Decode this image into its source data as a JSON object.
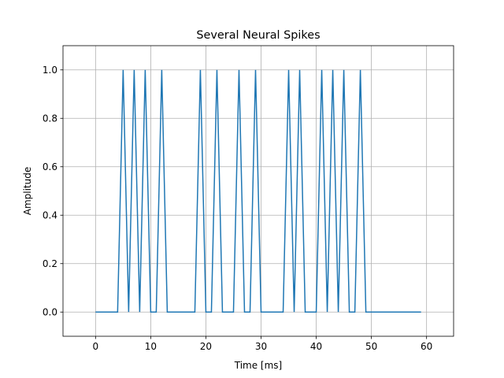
{
  "chart_data": {
    "type": "line",
    "title": "Several Neural Spikes",
    "xlabel": "Time [ms]",
    "ylabel": "Amplitude",
    "xlim": [
      -5.9,
      64.9
    ],
    "ylim": [
      -0.1,
      1.1
    ],
    "xticks": [
      0,
      10,
      20,
      30,
      40,
      50,
      60
    ],
    "yticks": [
      0.0,
      0.2,
      0.4,
      0.6,
      0.8,
      1.0
    ],
    "xtick_labels": [
      "0",
      "10",
      "20",
      "30",
      "40",
      "50",
      "60"
    ],
    "ytick_labels": [
      "0.0",
      "0.2",
      "0.4",
      "0.6",
      "0.8",
      "1.0"
    ],
    "grid": true,
    "line_color": "#1f77b4",
    "series": [
      {
        "x": [
          0,
          1,
          2,
          3,
          4,
          5,
          6,
          7,
          8,
          9,
          10,
          11,
          12,
          13,
          14,
          15,
          16,
          17,
          18,
          19,
          20,
          21,
          22,
          23,
          24,
          25,
          26,
          27,
          28,
          29,
          30,
          31,
          32,
          33,
          34,
          35,
          36,
          37,
          38,
          39,
          40,
          41,
          42,
          43,
          44,
          45,
          46,
          47,
          48,
          49,
          50,
          51,
          52,
          53,
          54,
          55,
          56,
          57,
          58,
          59
        ],
        "y": [
          0,
          0,
          0,
          0,
          0,
          1,
          0,
          1,
          0,
          1,
          0,
          0,
          1,
          0,
          0,
          0,
          0,
          0,
          0,
          1,
          0,
          0,
          1,
          0,
          0,
          0,
          1,
          0,
          0,
          1,
          0,
          0,
          0,
          0,
          0,
          1,
          0,
          1,
          0,
          0,
          0,
          1,
          0,
          1,
          0,
          1,
          0,
          0,
          1,
          0,
          0,
          0,
          0,
          0,
          0,
          0,
          0,
          0,
          0,
          0
        ]
      }
    ]
  }
}
